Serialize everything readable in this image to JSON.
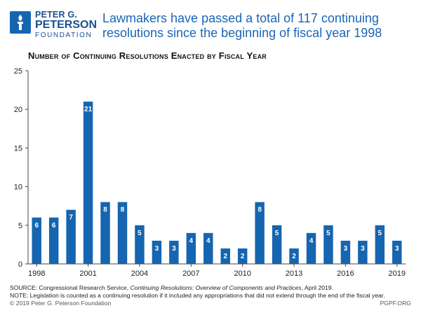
{
  "logo": {
    "line1": "PETER G.",
    "line2": "PETERSON",
    "line3": "FOUNDATION"
  },
  "headline": "Lawmakers have passed a total of 117 continuing resolutions since the beginning of fiscal year 1998",
  "colors": {
    "bar": "#1565b0",
    "headline": "#1a66b5",
    "label": "#ffffff"
  },
  "chart_data": {
    "type": "bar",
    "title": "Number of Continuing Resolutions Enacted by Fiscal Year",
    "categories": [
      "1998",
      "1999",
      "2000",
      "2001",
      "2002",
      "2003",
      "2004",
      "2005",
      "2006",
      "2007",
      "2008",
      "2009",
      "2010",
      "2011",
      "2012",
      "2013",
      "2014",
      "2015",
      "2016",
      "2017",
      "2018",
      "2019"
    ],
    "values": [
      6,
      6,
      7,
      21,
      8,
      8,
      5,
      3,
      3,
      4,
      4,
      2,
      2,
      8,
      5,
      2,
      4,
      5,
      3,
      3,
      5,
      3
    ],
    "xticks": [
      "1998",
      "2001",
      "2004",
      "2007",
      "2010",
      "2013",
      "2016",
      "2019"
    ],
    "yticks": [
      0,
      5,
      10,
      15,
      20,
      25
    ],
    "ylim": [
      0,
      25
    ],
    "xlabel": "",
    "ylabel": "",
    "grid": false
  },
  "footer": {
    "source_prefix": "SOURCE: Congressional Research Service, ",
    "source_title": "Continuing Resolutions: Overview of Components and Practices",
    "source_suffix": ", April 2019.",
    "note": "NOTE: Legislation is counted as a continuing resolution if it included any appropriations that did not extend through the end of the fiscal year.",
    "copyright": "© 2019 Peter G. Peterson Foundation",
    "site": "PGPF.ORG"
  }
}
